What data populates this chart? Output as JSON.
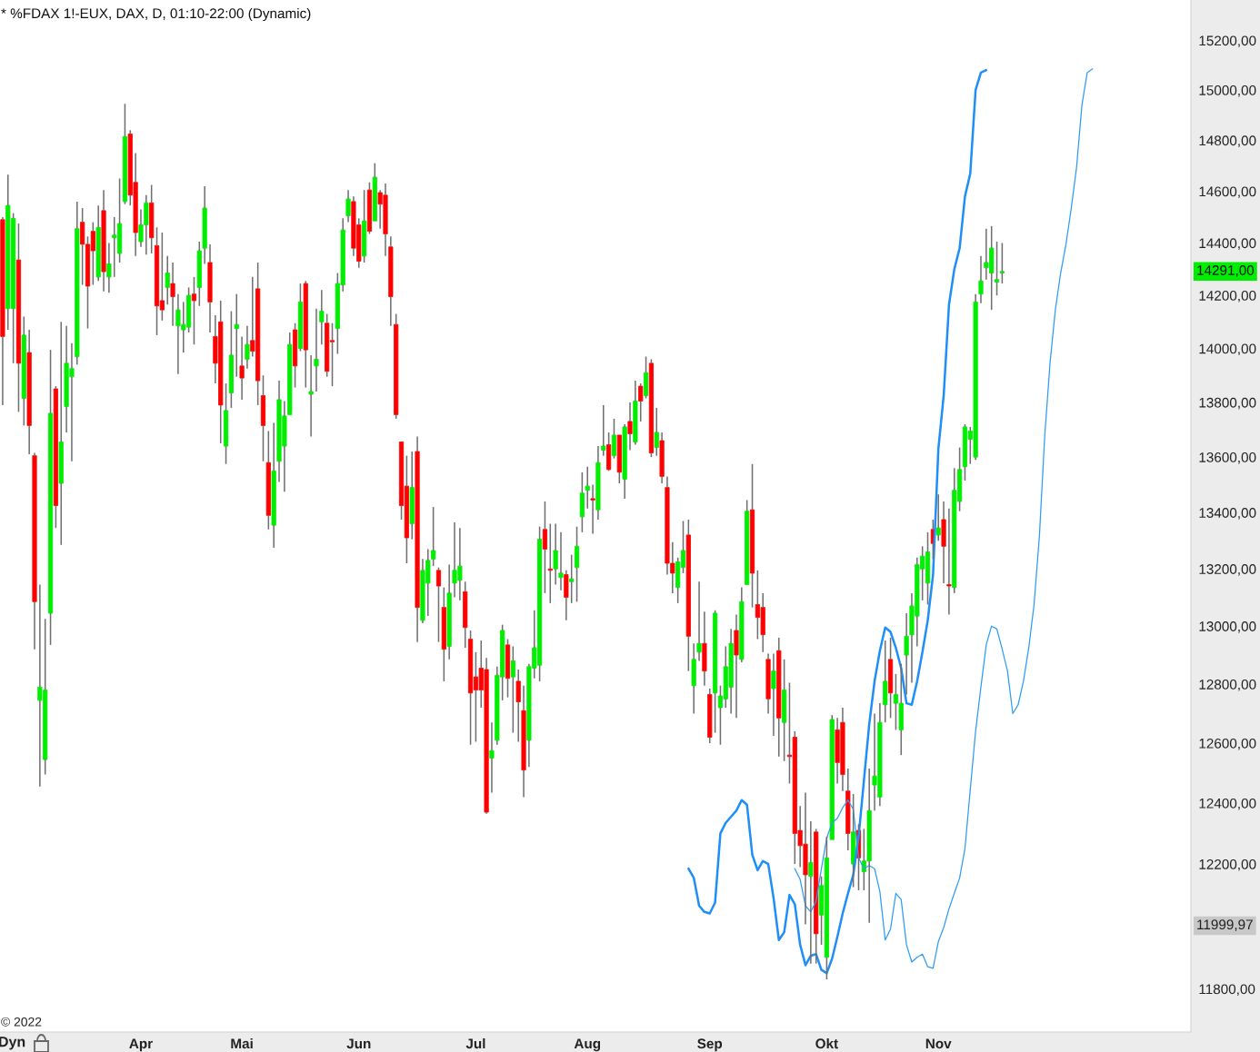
{
  "chart_data": {
    "type": "candlestick",
    "title": "* %FDAX 1!-EUX, DAX, D, 01:10-22:00 (Dynamic)",
    "categories": [
      null,
      null,
      null,
      null,
      null,
      null,
      null,
      null,
      null,
      null,
      null,
      null,
      null,
      null,
      null,
      null,
      null,
      null,
      null,
      null,
      null,
      null,
      null,
      null,
      null,
      null,
      "Apr",
      null,
      null,
      null,
      null,
      null,
      null,
      null,
      null,
      null,
      null,
      null,
      null,
      null,
      null,
      null,
      null,
      null,
      null,
      "Mai",
      null,
      null,
      null,
      null,
      null,
      null,
      null,
      null,
      null,
      null,
      null,
      null,
      null,
      null,
      null,
      null,
      null,
      null,
      null,
      null,
      null,
      "Jun",
      null,
      null,
      null,
      null,
      null,
      null,
      null,
      null,
      null,
      null,
      null,
      null,
      null,
      null,
      null,
      null,
      null,
      null,
      null,
      null,
      null,
      "Jul",
      null,
      null,
      null,
      null,
      null,
      null,
      null,
      null,
      null,
      null,
      null,
      null,
      null,
      null,
      null,
      null,
      null,
      null,
      null,
      null,
      "Aug",
      null,
      null,
      null,
      null,
      null,
      null,
      null,
      null,
      null,
      null,
      null,
      null,
      null,
      null,
      null,
      null,
      null,
      null,
      null,
      null,
      null,
      null,
      "Sep",
      null,
      null,
      null,
      null,
      null,
      null,
      null,
      null,
      null,
      null,
      null,
      null,
      null,
      null,
      null,
      null,
      null,
      null,
      null,
      null,
      null,
      "Okt",
      null,
      null,
      null,
      null,
      null,
      null,
      null,
      null,
      null,
      null,
      null,
      null,
      null,
      null,
      null,
      null,
      null,
      null,
      null,
      null,
      "Nov",
      null,
      null,
      null,
      null,
      null,
      null,
      null,
      null,
      null,
      null,
      null,
      null,
      null,
      null,
      null,
      null,
      null,
      null,
      null,
      null,
      null,
      null,
      null,
      null,
      null,
      null,
      null,
      null,
      null,
      null,
      null,
      null,
      null,
      null,
      null,
      null,
      null,
      null,
      null,
      null,
      null,
      null,
      null,
      null,
      null,
      null,
      null
    ],
    "ohlc": [
      [
        14490,
        14500,
        13790,
        14045
      ],
      [
        14150,
        14665,
        14070,
        14545
      ],
      [
        14150,
        14515,
        13945,
        14495
      ],
      [
        14335,
        14475,
        13765,
        13945
      ],
      [
        13815,
        14120,
        13715,
        14050
      ],
      [
        13985,
        14070,
        13610,
        13715
      ],
      [
        13605,
        13615,
        12920,
        13085
      ],
      [
        12745,
        13145,
        12455,
        12790
      ],
      [
        12545,
        13025,
        12495,
        12780
      ],
      [
        13045,
        13995,
        12935,
        13760
      ],
      [
        13850,
        13860,
        13345,
        13425
      ],
      [
        13505,
        14100,
        13285,
        13655
      ],
      [
        13785,
        14085,
        13690,
        13945
      ],
      [
        13895,
        14020,
        13585,
        13925
      ],
      [
        13970,
        14560,
        13940,
        14455
      ],
      [
        14480,
        14535,
        14240,
        14395
      ],
      [
        14395,
        14425,
        14075,
        14235
      ],
      [
        14445,
        14480,
        14240,
        14370
      ],
      [
        14270,
        14545,
        14255,
        14460
      ],
      [
        14525,
        14605,
        14215,
        14290
      ],
      [
        14270,
        14400,
        14210,
        14320
      ],
      [
        14420,
        14500,
        14270,
        14430
      ],
      [
        14360,
        14650,
        14325,
        14475
      ],
      [
        14560,
        14945,
        14550,
        14815
      ],
      [
        14825,
        14840,
        14545,
        14585
      ],
      [
        14635,
        14750,
        14350,
        14440
      ],
      [
        14405,
        14530,
        14385,
        14470
      ],
      [
        14470,
        14585,
        14355,
        14555
      ],
      [
        14555,
        14625,
        14360,
        14420
      ],
      [
        14390,
        14460,
        14050,
        14160
      ],
      [
        14180,
        14440,
        14105,
        14145
      ],
      [
        14230,
        14350,
        14165,
        14285
      ],
      [
        14245,
        14325,
        14085,
        14195
      ],
      [
        14085,
        14205,
        13905,
        14145
      ],
      [
        14070,
        14175,
        13985,
        14090
      ],
      [
        14080,
        14230,
        14060,
        14200
      ],
      [
        14205,
        14270,
        14015,
        14180
      ],
      [
        14230,
        14405,
        14160,
        14370
      ],
      [
        14380,
        14620,
        14320,
        14535
      ],
      [
        14325,
        14395,
        14060,
        14175
      ],
      [
        14045,
        14125,
        13870,
        13945
      ],
      [
        14100,
        14180,
        13650,
        13790
      ],
      [
        13640,
        13870,
        13575,
        13770
      ],
      [
        13835,
        14140,
        13780,
        13975
      ],
      [
        14075,
        14205,
        13895,
        14090
      ],
      [
        13935,
        14045,
        13810,
        13890
      ],
      [
        13960,
        14085,
        13925,
        14015
      ],
      [
        14030,
        14270,
        13970,
        13990
      ],
      [
        14225,
        14325,
        13790,
        13880
      ],
      [
        13825,
        13900,
        13585,
        13715
      ],
      [
        13580,
        13695,
        13340,
        13390
      ],
      [
        13355,
        13725,
        13275,
        13550
      ],
      [
        13585,
        13880,
        13510,
        13810
      ],
      [
        13640,
        13805,
        13475,
        13750
      ],
      [
        13755,
        14060,
        13755,
        14015
      ],
      [
        14070,
        14095,
        13855,
        13935
      ],
      [
        14000,
        14245,
        13990,
        14175
      ],
      [
        14245,
        14255,
        13855,
        13995
      ],
      [
        13830,
        13975,
        13675,
        13840
      ],
      [
        13935,
        14150,
        13840,
        13960
      ],
      [
        14100,
        14220,
        14015,
        14140
      ],
      [
        14095,
        14130,
        13895,
        13915
      ],
      [
        14030,
        14095,
        13860,
        14025
      ],
      [
        14075,
        14285,
        13980,
        14245
      ],
      [
        14240,
        14495,
        14215,
        14450
      ],
      [
        14505,
        14605,
        14480,
        14570
      ],
      [
        14560,
        14580,
        14350,
        14380
      ],
      [
        14470,
        14495,
        14305,
        14330
      ],
      [
        14350,
        14605,
        14325,
        14485
      ],
      [
        14605,
        14635,
        14435,
        14445
      ],
      [
        14485,
        14710,
        14485,
        14655
      ],
      [
        14595,
        14605,
        14455,
        14550
      ],
      [
        14585,
        14630,
        14350,
        14435
      ],
      [
        14385,
        14425,
        14085,
        14195
      ],
      [
        14090,
        14130,
        13740,
        13755
      ],
      [
        13655,
        13655,
        13375,
        13425
      ],
      [
        13495,
        13605,
        13220,
        13310
      ],
      [
        13360,
        13620,
        13305,
        13490
      ],
      [
        13620,
        13675,
        12945,
        13065
      ],
      [
        13020,
        13235,
        13010,
        13195
      ],
      [
        13150,
        13270,
        13035,
        13230
      ],
      [
        13235,
        13420,
        13210,
        13265
      ],
      [
        13195,
        13205,
        12945,
        13140
      ],
      [
        13065,
        13135,
        12810,
        12920
      ],
      [
        12930,
        13215,
        12885,
        13115
      ],
      [
        13150,
        13365,
        13100,
        13195
      ],
      [
        13160,
        13345,
        13090,
        13210
      ],
      [
        13120,
        13155,
        12925,
        12995
      ],
      [
        12955,
        12985,
        12595,
        12770
      ],
      [
        12825,
        12910,
        12605,
        12780
      ],
      [
        12855,
        12950,
        12720,
        12780
      ],
      [
        12850,
        12890,
        12365,
        12370
      ],
      [
        12550,
        12670,
        12435,
        12575
      ],
      [
        12610,
        12860,
        12595,
        12830
      ],
      [
        12825,
        13005,
        12745,
        12985
      ],
      [
        12935,
        12955,
        12755,
        12820
      ],
      [
        12825,
        12930,
        12635,
        12880
      ],
      [
        12810,
        12850,
        12605,
        12740
      ],
      [
        12710,
        12795,
        12420,
        12510
      ],
      [
        12610,
        12870,
        12520,
        12860
      ],
      [
        12855,
        13055,
        12820,
        12925
      ],
      [
        12865,
        13350,
        12810,
        13305
      ],
      [
        13340,
        13440,
        13115,
        13270
      ],
      [
        13200,
        13360,
        13080,
        13195
      ],
      [
        13200,
        13360,
        13145,
        13265
      ],
      [
        13170,
        13330,
        13125,
        13185
      ],
      [
        13180,
        13195,
        13020,
        13100
      ],
      [
        13155,
        13250,
        13080,
        13165
      ],
      [
        13205,
        13350,
        13085,
        13280
      ],
      [
        13385,
        13545,
        13330,
        13470
      ],
      [
        13480,
        13565,
        13415,
        13495
      ],
      [
        13450,
        13500,
        13325,
        13445
      ],
      [
        13410,
        13640,
        13375,
        13580
      ],
      [
        13625,
        13790,
        13605,
        13640
      ],
      [
        13645,
        13690,
        13550,
        13555
      ],
      [
        13605,
        13740,
        13595,
        13680
      ],
      [
        13680,
        13680,
        13505,
        13545
      ],
      [
        13520,
        13720,
        13450,
        13710
      ],
      [
        13730,
        13800,
        13625,
        13685
      ],
      [
        13655,
        13880,
        13645,
        13805
      ],
      [
        13860,
        13870,
        13730,
        13805
      ],
      [
        13825,
        13970,
        13815,
        13910
      ],
      [
        13945,
        13960,
        13600,
        13615
      ],
      [
        13635,
        13780,
        13605,
        13690
      ],
      [
        13660,
        13690,
        13505,
        13530
      ],
      [
        13490,
        13530,
        13180,
        13220
      ],
      [
        13220,
        13295,
        13115,
        13185
      ],
      [
        13135,
        13240,
        13080,
        13225
      ],
      [
        13205,
        13370,
        13185,
        13265
      ],
      [
        13320,
        13375,
        12845,
        12965
      ],
      [
        12795,
        12940,
        12700,
        12885
      ],
      [
        12910,
        13155,
        12880,
        12940
      ],
      [
        12940,
        13050,
        12795,
        12845
      ],
      [
        12765,
        12785,
        12600,
        12620
      ],
      [
        12770,
        13055,
        12635,
        13045
      ],
      [
        12720,
        12795,
        12595,
        12760
      ],
      [
        12750,
        12930,
        12720,
        12860
      ],
      [
        12790,
        12990,
        12700,
        12940
      ],
      [
        12985,
        13040,
        12685,
        12900
      ],
      [
        12885,
        13135,
        12875,
        13085
      ],
      [
        13145,
        13445,
        13145,
        13405
      ],
      [
        13410,
        13575,
        13065,
        13185
      ],
      [
        13075,
        13195,
        12955,
        13030
      ],
      [
        13065,
        13115,
        12910,
        12970
      ],
      [
        12885,
        12905,
        12700,
        12750
      ],
      [
        12785,
        12905,
        12625,
        12845
      ],
      [
        12915,
        12960,
        12555,
        12685
      ],
      [
        12670,
        12885,
        12540,
        12780
      ],
      [
        12560,
        12805,
        12465,
        12555
      ],
      [
        12620,
        12640,
        12200,
        12300
      ],
      [
        12310,
        12390,
        12190,
        12260
      ],
      [
        12265,
        12435,
        12005,
        12165
      ],
      [
        12160,
        12340,
        11880,
        12205
      ],
      [
        12305,
        12315,
        11880,
        11975
      ],
      [
        12035,
        12160,
        11940,
        12130
      ],
      [
        11900,
        12290,
        11830,
        12220
      ],
      [
        12280,
        12695,
        12280,
        12680
      ],
      [
        12645,
        12685,
        12465,
        12535
      ],
      [
        12670,
        12720,
        12440,
        12495
      ],
      [
        12440,
        12515,
        12245,
        12300
      ],
      [
        12200,
        12430,
        12125,
        12305
      ],
      [
        12310,
        12330,
        12115,
        12220
      ],
      [
        12175,
        12315,
        12115,
        12210
      ],
      [
        12210,
        12515,
        12010,
        12375
      ],
      [
        12460,
        12700,
        12375,
        12490
      ],
      [
        12420,
        12735,
        12390,
        12670
      ],
      [
        12730,
        12950,
        12670,
        12810
      ],
      [
        12885,
        12960,
        12685,
        12770
      ],
      [
        12735,
        12835,
        12645,
        12765
      ],
      [
        12645,
        12870,
        12560,
        12735
      ],
      [
        12900,
        13045,
        12765,
        12965
      ],
      [
        12970,
        13115,
        12805,
        13070
      ],
      [
        13035,
        13240,
        12930,
        13215
      ],
      [
        13200,
        13280,
        13090,
        13245
      ],
      [
        13150,
        13330,
        13075,
        13260
      ],
      [
        13340,
        13375,
        13235,
        13290
      ],
      [
        13320,
        13465,
        13300,
        13345
      ],
      [
        13375,
        13440,
        13150,
        13280
      ],
      [
        13145,
        13415,
        13040,
        13140
      ],
      [
        13135,
        13560,
        13115,
        13480
      ],
      [
        13440,
        13635,
        13405,
        13555
      ],
      [
        13565,
        13720,
        13515,
        13710
      ],
      [
        13665,
        13710,
        13575,
        13695
      ],
      [
        13600,
        14205,
        13590,
        14175
      ],
      [
        14205,
        14350,
        14170,
        14255
      ],
      [
        14305,
        14455,
        14260,
        14325
      ],
      [
        14285,
        14465,
        14145,
        14380
      ],
      [
        14250,
        14405,
        14200,
        14260
      ],
      [
        14285,
        14400,
        14245,
        14291
      ],
      null,
      null,
      null,
      null,
      null,
      null,
      null,
      null,
      null,
      null,
      null,
      null,
      null,
      null,
      null,
      null,
      null,
      null,
      null,
      null,
      null,
      null,
      null,
      null,
      null,
      null,
      null,
      null,
      null,
      null,
      null,
      null,
      null,
      null,
      null
    ],
    "colors": [
      "#ff0000",
      "#00ee00",
      "#00ee00",
      "#ff0000",
      "#00ee00",
      "#ff0000",
      "#ff0000",
      "#00ee00",
      "#00ee00",
      "#00ee00",
      "#ff0000",
      "#00ee00",
      "#00ee00",
      "#00ee00",
      "#00ee00",
      "#ff0000",
      "#ff0000",
      "#ff0000",
      "#00ee00",
      "#ff0000",
      "#00ee00",
      "#00ee00",
      "#00ee00",
      "#00ee00",
      "#ff0000",
      "#ff0000",
      "#00ee00",
      "#00ee00",
      "#ff0000",
      "#ff0000",
      "#ff0000",
      "#00ee00",
      "#ff0000",
      "#00ee00",
      "#00ee00",
      "#00ee00",
      "#ff0000",
      "#00ee00",
      "#00ee00",
      "#ff0000",
      "#ff0000",
      "#ff0000",
      "#00ee00",
      "#00ee00",
      "#00ee00",
      "#ff0000",
      "#00ee00",
      "#ff0000",
      "#ff0000",
      "#ff0000",
      "#ff0000",
      "#00ee00",
      "#00ee00",
      "#00ee00",
      "#00ee00",
      "#ff0000",
      "#00ee00",
      "#ff0000",
      "#00ee00",
      "#00ee00",
      "#00ee00",
      "#ff0000",
      "#ff0000",
      "#00ee00",
      "#00ee00",
      "#00ee00",
      "#ff0000",
      "#ff0000",
      "#00ee00",
      "#ff0000",
      "#00ee00",
      "#ff0000",
      "#ff0000",
      "#ff0000",
      "#ff0000",
      "#ff0000",
      "#ff0000",
      "#00ee00",
      "#ff0000",
      "#00ee00",
      "#00ee00",
      "#00ee00",
      "#ff0000",
      "#ff0000",
      "#00ee00",
      "#00ee00",
      "#00ee00",
      "#ff0000",
      "#ff0000",
      "#ff0000",
      "#ff0000",
      "#ff0000",
      "#00ee00",
      "#00ee00",
      "#00ee00",
      "#ff0000",
      "#00ee00",
      "#ff0000",
      "#ff0000",
      "#00ee00",
      "#00ee00",
      "#00ee00",
      "#ff0000",
      "#ff0000",
      "#00ee00",
      "#00ee00",
      "#ff0000",
      "#00ee00",
      "#00ee00",
      "#00ee00",
      "#00ee00",
      "#ff0000",
      "#00ee00",
      "#00ee00",
      "#ff0000",
      "#00ee00",
      "#ff0000",
      "#00ee00",
      "#ff0000",
      "#00ee00",
      "#ff0000",
      "#00ee00",
      "#ff0000",
      "#00ee00",
      "#ff0000",
      "#ff0000",
      "#ff0000",
      "#00ee00",
      "#00ee00",
      "#ff0000",
      "#00ee00",
      "#00ee00",
      "#ff0000",
      "#ff0000",
      "#00ee00",
      "#00ee00",
      "#00ee00",
      "#00ee00",
      "#ff0000",
      "#00ee00",
      "#00ee00",
      "#ff0000",
      "#ff0000",
      "#ff0000",
      "#ff0000",
      "#00ee00",
      "#ff0000",
      "#00ee00",
      "#ff0000",
      "#ff0000",
      "#ff0000",
      "#ff0000",
      "#00ee00",
      "#ff0000",
      "#00ee00",
      "#00ee00",
      "#00ee00",
      "#ff0000",
      "#ff0000",
      "#ff0000",
      "#00ee00",
      "#ff0000",
      "#00ee00",
      "#00ee00",
      "#00ee00",
      "#00ee00",
      "#00ee00",
      "#ff0000",
      "#00ee00",
      "#00ee00",
      "#00ee00",
      "#00ee00",
      "#00ee00",
      "#00ee00",
      "#00ee00",
      "#ff0000",
      "#00ee00",
      "#ff0000",
      "#ff0000",
      "#00ee00",
      "#00ee00",
      "#00ee00",
      "#00ee00",
      "#00ee00",
      "#00ee00",
      "#00ee00",
      "#00ee00",
      "#00ee00",
      "#00ee00",
      null,
      null,
      null,
      null,
      null,
      null,
      null,
      null,
      null,
      null,
      null,
      null,
      null,
      null,
      null,
      null,
      null,
      null,
      null,
      null,
      null,
      null,
      null,
      null,
      null,
      null,
      null,
      null,
      null,
      null,
      null,
      null,
      null,
      null,
      null
    ],
    "value_labels": [
      null,
      null,
      null,
      null,
      null,
      null,
      null,
      null,
      null,
      null,
      null,
      null,
      null,
      null,
      null,
      null,
      null,
      null,
      null,
      null,
      null,
      null,
      null,
      null,
      null,
      null,
      null,
      null,
      null,
      null,
      null,
      null,
      null,
      null,
      null,
      null,
      null,
      null,
      null,
      null,
      null,
      null,
      null,
      null,
      null,
      null,
      null,
      null,
      null,
      null,
      null,
      null,
      null,
      null,
      null,
      null,
      null,
      null,
      null,
      null,
      null,
      null,
      null,
      null,
      null,
      null,
      null,
      null,
      null,
      null,
      null,
      null,
      null,
      null,
      null,
      null,
      null,
      null,
      null,
      null,
      null,
      null,
      null,
      null,
      null,
      null,
      null,
      null,
      null,
      null,
      null,
      null,
      null,
      null,
      null,
      null,
      null,
      null,
      null,
      null,
      null,
      null,
      null,
      null,
      null,
      null,
      null,
      null,
      null,
      null,
      null,
      null,
      null,
      null,
      null,
      null,
      null,
      null,
      null,
      null,
      null,
      null,
      null,
      null,
      null,
      null,
      null,
      null,
      null,
      null,
      null,
      null,
      null,
      null,
      null,
      null,
      null,
      null,
      null,
      null,
      null,
      null,
      null,
      null,
      null,
      null,
      null,
      null,
      null,
      null,
      null,
      null,
      null,
      null,
      null,
      null,
      null,
      null,
      null,
      null,
      null,
      null,
      null,
      null,
      null,
      null,
      null,
      null,
      null,
      null,
      null,
      null,
      null,
      null,
      null,
      null,
      null,
      null,
      null,
      null,
      null,
      null,
      null,
      null,
      null,
      null,
      null,
      null,
      "14291,00",
      null,
      null,
      null,
      null,
      null,
      null,
      null,
      null,
      null,
      null,
      null,
      null,
      null,
      null,
      null,
      null,
      null,
      null,
      null,
      null,
      null,
      null,
      null,
      null,
      null,
      null,
      null,
      null,
      null,
      null,
      null,
      null,
      null,
      null,
      null
    ],
    "series": [
      {
        "type": "line",
        "color": "#1e8ef8",
        "values": [
          null,
          null,
          null,
          null,
          null,
          null,
          null,
          null,
          null,
          null,
          null,
          null,
          null,
          null,
          null,
          null,
          null,
          null,
          null,
          null,
          null,
          null,
          null,
          null,
          null,
          null,
          null,
          null,
          null,
          null,
          null,
          null,
          null,
          null,
          null,
          null,
          null,
          null,
          null,
          null,
          null,
          null,
          null,
          null,
          null,
          null,
          null,
          null,
          null,
          null,
          null,
          null,
          null,
          null,
          null,
          null,
          null,
          null,
          null,
          null,
          null,
          null,
          null,
          null,
          null,
          null,
          null,
          null,
          null,
          null,
          null,
          null,
          null,
          null,
          null,
          null,
          null,
          null,
          null,
          null,
          null,
          null,
          null,
          null,
          null,
          null,
          null,
          null,
          null,
          null,
          null,
          null,
          null,
          null,
          null,
          null,
          null,
          null,
          null,
          null,
          null,
          null,
          null,
          null,
          null,
          null,
          null,
          null,
          null,
          null,
          null,
          null,
          null,
          null,
          null,
          null,
          null,
          null,
          null,
          null,
          null,
          null,
          null,
          null,
          null,
          null,
          null,
          null,
          null,
          12185,
          12155,
          12065,
          12045,
          12040,
          12075,
          12300,
          12335,
          12355,
          12375,
          12410,
          12395,
          12230,
          12180,
          12210,
          12200,
          12090,
          11955,
          11980,
          12100,
          12070,
          11940,
          11875,
          11905,
          11910,
          11860,
          11850,
          11895,
          11965,
          12040,
          12105,
          12165,
          12290,
          12475,
          12665,
          12810,
          12915,
          12995,
          12980,
          12925,
          12855,
          12735,
          12730,
          12810,
          12910,
          13020,
          13180,
          13630,
          13825,
          14165,
          14300,
          14380,
          14580,
          14670,
          15000,
          15070,
          15080,
          null,
          null,
          null,
          null,
          null,
          null,
          null,
          null,
          null,
          null,
          null,
          null,
          null,
          null,
          null,
          null,
          null,
          null,
          null,
          null,
          null,
          null,
          null,
          null,
          null,
          null,
          null,
          null,
          null,
          null,
          null,
          null,
          null,
          null,
          null,
          null,
          null,
          null
        ]
      },
      {
        "type": "line",
        "color": "#2f9cf5",
        "values": [
          null,
          null,
          null,
          null,
          null,
          null,
          null,
          null,
          null,
          null,
          null,
          null,
          null,
          null,
          null,
          null,
          null,
          null,
          null,
          null,
          null,
          null,
          null,
          null,
          null,
          null,
          null,
          null,
          null,
          null,
          null,
          null,
          null,
          null,
          null,
          null,
          null,
          null,
          null,
          null,
          null,
          null,
          null,
          null,
          null,
          null,
          null,
          null,
          null,
          null,
          null,
          null,
          null,
          null,
          null,
          null,
          null,
          null,
          null,
          null,
          null,
          null,
          null,
          null,
          null,
          null,
          null,
          null,
          null,
          null,
          null,
          null,
          null,
          null,
          null,
          null,
          null,
          null,
          null,
          null,
          null,
          null,
          null,
          null,
          null,
          null,
          null,
          null,
          null,
          null,
          null,
          null,
          null,
          null,
          null,
          null,
          null,
          null,
          null,
          null,
          null,
          null,
          null,
          null,
          null,
          null,
          null,
          null,
          null,
          null,
          null,
          null,
          null,
          null,
          null,
          null,
          null,
          null,
          null,
          null,
          null,
          null,
          null,
          null,
          null,
          null,
          null,
          null,
          null,
          null,
          null,
          null,
          null,
          null,
          null,
          null,
          null,
          null,
          null,
          null,
          null,
          null,
          null,
          null,
          null,
          null,
          null,
          null,
          null,
          12185,
          12150,
          12065,
          12045,
          12080,
          12185,
          12285,
          12335,
          12350,
          12385,
          12410,
          12380,
          12220,
          12185,
          12195,
          12185,
          12110,
          11955,
          11990,
          12105,
          12085,
          11940,
          11885,
          11900,
          11910,
          11870,
          11865,
          11950,
          11995,
          12055,
          12105,
          12155,
          12250,
          12445,
          12640,
          12790,
          12935,
          13000,
          12990,
          12920,
          12845,
          12700,
          12730,
          12810,
          12925,
          13075,
          13315,
          13675,
          13945,
          14145,
          14285,
          14395,
          14535,
          14695,
          14940,
          15070,
          15085,
          null,
          null,
          null,
          null,
          null,
          null,
          null,
          null,
          null,
          null,
          null,
          null,
          null,
          null,
          null,
          null,
          null,
          null
        ]
      }
    ],
    "log": true,
    "ylim": [
      11665,
      15365
    ],
    "yticks": [
      {
        "value": 11800,
        "label": "11800,00"
      },
      {
        "value": 12200,
        "label": "12200,00"
      },
      {
        "value": 12400,
        "label": "12400,00"
      },
      {
        "value": 12600,
        "label": "12600,00"
      },
      {
        "value": 12800,
        "label": "12800,00"
      },
      {
        "value": 13000,
        "label": "13000,00"
      },
      {
        "value": 13200,
        "label": "13200,00"
      },
      {
        "value": 13400,
        "label": "13400,00"
      },
      {
        "value": 13600,
        "label": "13600,00"
      },
      {
        "value": 13800,
        "label": "13800,00"
      },
      {
        "value": 14000,
        "label": "14000,00"
      },
      {
        "value": 14200,
        "label": "14200,00"
      },
      {
        "value": 14400,
        "label": "14400,00"
      },
      {
        "value": 14600,
        "label": "14600,00"
      },
      {
        "value": 14800,
        "label": "14800,00"
      },
      {
        "value": 15000,
        "label": "15000,00"
      },
      {
        "value": 15200,
        "label": "15200,00"
      }
    ],
    "annotations": [
      "11999,97",
      "© 2022",
      "Dyn"
    ]
  }
}
